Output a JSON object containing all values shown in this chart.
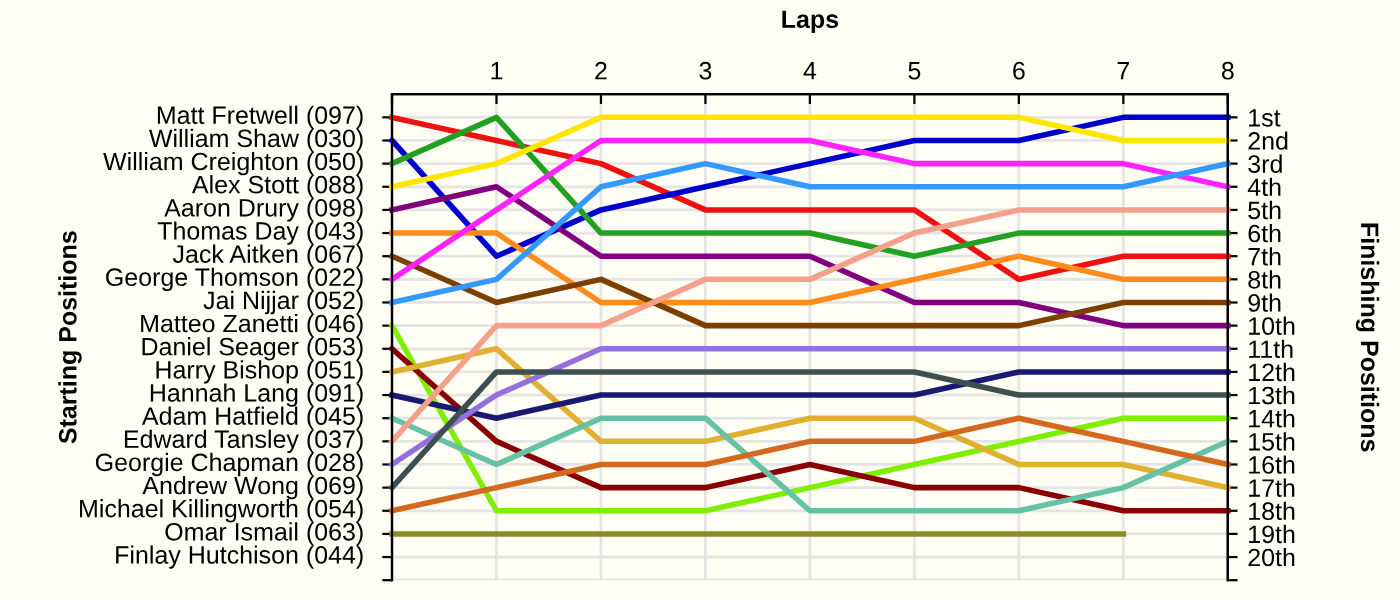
{
  "chart_data": {
    "type": "line",
    "xlabel": "Laps",
    "y2label": "Finishing Positions",
    "x": [
      0,
      1,
      2,
      3,
      4,
      5,
      6,
      7,
      8
    ],
    "xlim": [
      0,
      8
    ],
    "xticks": [
      {
        "value": 0,
        "label": null
      },
      1,
      2,
      3,
      4,
      5,
      6,
      7,
      8
    ],
    "annotations": [
      "Starting Positions",
      "Matt Fretwell (097)",
      "William Shaw (030)",
      "William Creighton (050)",
      "Alex Stott (088)",
      "Aaron Drury (098)",
      "Thomas Day (043)",
      "Jack Aitken (067)",
      "George Thomson (022)",
      "Jai Nijjar (052)",
      "Matteo Zanetti (046)",
      "Daniel Seager (053)",
      "Harry Bishop (051)",
      "Hannah Lang (091)",
      "Adam Hatfield (045)",
      "Edward Tansley (037)",
      "Georgie Chapman (028)",
      "Andrew Wong (069)",
      "Michael Killingworth (054)",
      "Omar Ismail (063)",
      "Finlay Hutchison (044)"
    ],
    "y2lim": [
      21,
      0
    ],
    "y2ticks": [
      {
        "value": 1,
        "label": "1st"
      },
      {
        "value": 2,
        "label": "2nd"
      },
      {
        "value": 3,
        "label": "3rd"
      },
      {
        "value": 4,
        "label": "4th"
      },
      {
        "value": 5,
        "label": "5th"
      },
      {
        "value": 6,
        "label": "6th"
      },
      {
        "value": 7,
        "label": "7th"
      },
      {
        "value": 8,
        "label": "8th"
      },
      {
        "value": 9,
        "label": "9th"
      },
      {
        "value": 10,
        "label": "10th"
      },
      {
        "value": 11,
        "label": "11th"
      },
      {
        "value": 12,
        "label": "12th"
      },
      {
        "value": 13,
        "label": "13th"
      },
      {
        "value": 14,
        "label": "14th"
      },
      {
        "value": 15,
        "label": "15th"
      },
      {
        "value": 16,
        "label": "16th"
      },
      {
        "value": 17,
        "label": "17th"
      },
      {
        "value": 18,
        "label": "18th"
      },
      {
        "value": 19,
        "label": "19th"
      },
      {
        "value": 20,
        "label": "20th"
      },
      {
        "value": 21,
        "label": null
      }
    ],
    "grid": true,
    "marker": "none",
    "line_style": "solid",
    "series": [
      {
        "axis": "y2",
        "color": "#ee1111",
        "values": [
          1,
          2,
          3,
          5,
          5,
          5,
          8,
          7,
          7
        ]
      },
      {
        "axis": "y2",
        "color": "#0000cc",
        "values": [
          2,
          7,
          5,
          4,
          3,
          2,
          2,
          1,
          1
        ]
      },
      {
        "axis": "y2",
        "color": "#22a022",
        "values": [
          3,
          1,
          6,
          6,
          6,
          7,
          6,
          6,
          6
        ]
      },
      {
        "axis": "y2",
        "color": "#ffe600",
        "values": [
          4,
          3,
          1,
          1,
          1,
          1,
          1,
          2,
          2
        ]
      },
      {
        "axis": "y2",
        "color": "#800080",
        "values": [
          5,
          4,
          7,
          7,
          7,
          9,
          9,
          10,
          10
        ]
      },
      {
        "axis": "y2",
        "color": "#ff8c1a",
        "values": [
          6,
          6,
          9,
          9,
          9,
          8,
          7,
          8,
          8
        ]
      },
      {
        "axis": "y2",
        "color": "#7b3f00",
        "values": [
          7,
          9,
          8,
          10,
          10,
          10,
          10,
          9,
          9
        ]
      },
      {
        "axis": "y2",
        "color": "#ff22ff",
        "values": [
          8,
          5,
          2,
          2,
          2,
          3,
          3,
          3,
          4
        ]
      },
      {
        "axis": "y2",
        "color": "#3399ff",
        "values": [
          9,
          8,
          4,
          3,
          4,
          4,
          4,
          4,
          3
        ]
      },
      {
        "axis": "y2",
        "color": "#80ee00",
        "values": [
          10,
          18,
          18,
          18,
          17,
          16,
          15,
          14,
          14
        ]
      },
      {
        "axis": "y2",
        "color": "#8b0000",
        "values": [
          11,
          15,
          17,
          17,
          16,
          17,
          17,
          18,
          18
        ]
      },
      {
        "axis": "y2",
        "color": "#e0b030",
        "values": [
          12,
          11,
          15,
          15,
          14,
          14,
          16,
          16,
          17
        ]
      },
      {
        "axis": "y2",
        "color": "#191970",
        "values": [
          13,
          14,
          13,
          13,
          13,
          13,
          12,
          12,
          12
        ]
      },
      {
        "axis": "y2",
        "color": "#66c2a5",
        "values": [
          14,
          16,
          14,
          14,
          18,
          18,
          18,
          17,
          15
        ]
      },
      {
        "axis": "y2",
        "color": "#f4a08a",
        "values": [
          15,
          10,
          10,
          8,
          8,
          6,
          5,
          5,
          5
        ]
      },
      {
        "axis": "y2",
        "color": "#9370db",
        "values": [
          16,
          13,
          11,
          11,
          11,
          11,
          11,
          11,
          11
        ]
      },
      {
        "axis": "y2",
        "color": "#3c5050",
        "values": [
          17,
          12,
          12,
          12,
          12,
          12,
          13,
          13,
          13
        ]
      },
      {
        "axis": "y2",
        "color": "#d2691e",
        "values": [
          18,
          17,
          16,
          16,
          15,
          15,
          14,
          15,
          16
        ]
      },
      {
        "axis": "y2",
        "color": "#8b8b2b",
        "values": [
          19,
          19,
          19,
          19,
          19,
          19,
          19,
          19,
          null
        ]
      }
    ]
  }
}
